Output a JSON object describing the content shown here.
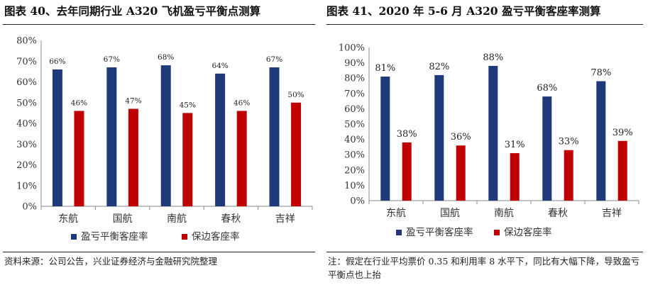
{
  "left": {
    "title": "图表 40、去年同期行业 A320 飞机盈亏平衡点测算",
    "source": "资料来源：公司公告，兴业证券经济与金融研究院整理"
  },
  "right": {
    "title": "图表 41、2020 年 5-6 月 A320 盈亏平衡客座率测算",
    "note": "注：假定在行业平均票价 0.35 和利用率 8 水平下，同比有大幅下降，导致盈亏平衡点也上抬"
  },
  "colors": {
    "series1": "#1f3a7a",
    "series2": "#c00000",
    "axis": "#888888"
  },
  "chart_data": [
    {
      "type": "bar",
      "categories": [
        "东航",
        "国航",
        "南航",
        "春秋",
        "吉祥"
      ],
      "series": [
        {
          "name": "盈亏平衡客座率",
          "values": [
            66,
            67,
            68,
            64,
            67
          ],
          "labels": [
            "66%",
            "67%",
            "68%",
            "64%",
            "67%"
          ]
        },
        {
          "name": "保边客座率",
          "values": [
            46,
            47,
            45,
            46,
            50
          ],
          "labels": [
            "46%",
            "47%",
            "45%",
            "46%",
            "50%"
          ]
        }
      ],
      "ylim": [
        0,
        80
      ],
      "yticks": [
        "0%",
        "10%",
        "20%",
        "30%",
        "40%",
        "50%",
        "60%",
        "70%",
        "80%"
      ],
      "legend": "bottom"
    },
    {
      "type": "bar",
      "categories": [
        "东航",
        "国航",
        "南航",
        "春秋",
        "吉祥"
      ],
      "series": [
        {
          "name": "盈亏平衡客座率",
          "values": [
            81,
            82,
            88,
            68,
            78
          ],
          "labels": [
            "81%",
            "82%",
            "88%",
            "68%",
            "78%"
          ]
        },
        {
          "name": "保边客座率",
          "values": [
            38,
            36,
            31,
            33,
            39
          ],
          "labels": [
            "38%",
            "36%",
            "31%",
            "33%",
            "39%"
          ]
        }
      ],
      "ylim": [
        0,
        100
      ],
      "yticks": [
        "0%",
        "10%",
        "20%",
        "30%",
        "40%",
        "50%",
        "60%",
        "70%",
        "80%",
        "90%",
        "100%"
      ],
      "legend": "bottom"
    }
  ]
}
